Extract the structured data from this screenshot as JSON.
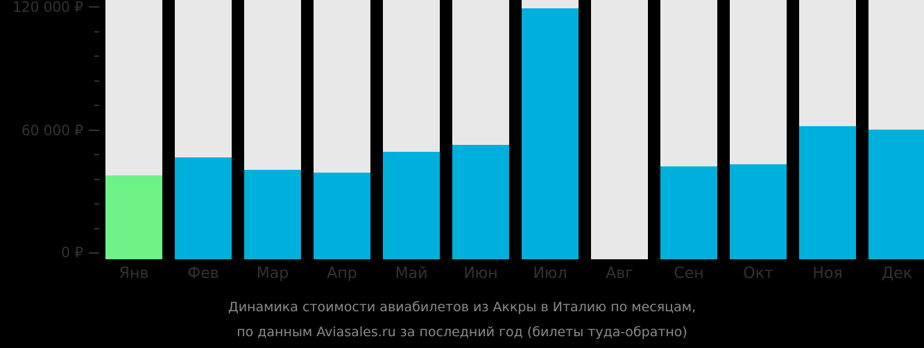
{
  "chart_data": {
    "type": "bar",
    "title": "Динамика стоимости авиабилетов из Аккры в Италию по месяцам,",
    "subtitle": "по данным Aviasales.ru за последний год (билеты туда-обратно)",
    "xlabel": "",
    "ylabel": "",
    "ylim": [
      0,
      120000
    ],
    "y_ticks": [
      "0 ₽",
      "60 000 ₽",
      "120 000 ₽"
    ],
    "grid": false,
    "categories": [
      "Янв",
      "Фев",
      "Мар",
      "Апр",
      "Май",
      "Июн",
      "Июл",
      "Авг",
      "Сен",
      "Окт",
      "Ноя",
      "Дек"
    ],
    "values": [
      37900,
      46600,
      40600,
      39200,
      49300,
      52700,
      119400,
      null,
      42200,
      43300,
      61900,
      60200
    ],
    "highlight": {
      "index": 0,
      "color": "#6ef287"
    },
    "bar_color": "#00b0dc",
    "track_color": "#e8e8e8"
  },
  "axis": {
    "y_labels": [
      "120 000 ₽",
      "60 000 ₽",
      "0 ₽"
    ]
  },
  "caption": {
    "line1": "Динамика стоимости авиабилетов из Аккры в Италию по месяцам,",
    "line2": "по данным Aviasales.ru за последний год (билеты туда-обратно)"
  }
}
